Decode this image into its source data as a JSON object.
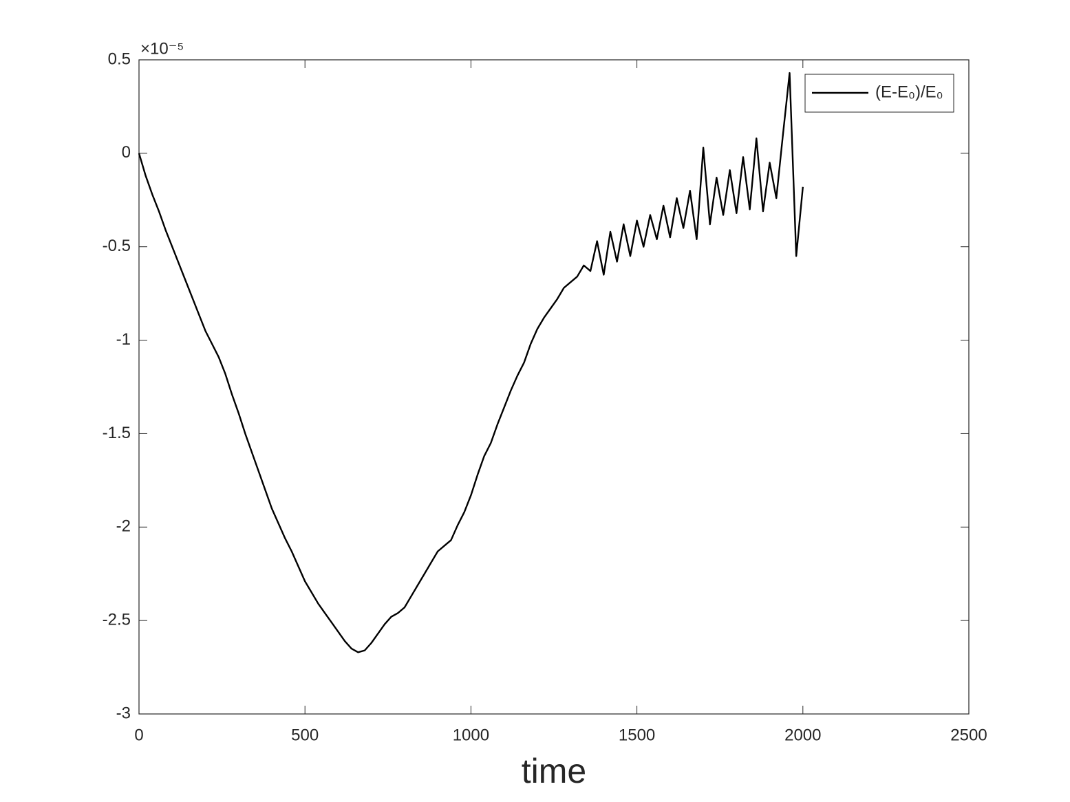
{
  "chart_data": {
    "type": "line",
    "xlabel": "time",
    "y_multiplier": "×10⁻⁵",
    "xlim": [
      0,
      2500
    ],
    "xticks": [
      0,
      500,
      1000,
      1500,
      2000,
      2500
    ],
    "ylim": [
      -3,
      0.5
    ],
    "yticks": [
      0.5,
      0,
      -0.5,
      -1,
      -1.5,
      -2,
      -2.5,
      -3
    ],
    "legend": "northeast",
    "x": [
      0,
      20,
      40,
      60,
      80,
      100,
      120,
      140,
      160,
      180,
      200,
      220,
      240,
      260,
      280,
      300,
      320,
      340,
      360,
      380,
      400,
      420,
      440,
      460,
      480,
      500,
      520,
      540,
      560,
      580,
      600,
      620,
      640,
      660,
      680,
      700,
      720,
      740,
      760,
      780,
      800,
      820,
      840,
      860,
      880,
      900,
      920,
      940,
      960,
      980,
      1000,
      1020,
      1040,
      1060,
      1080,
      1100,
      1120,
      1140,
      1160,
      1180,
      1200,
      1220,
      1240,
      1260,
      1280,
      1300,
      1320,
      1340,
      1360,
      1380,
      1400,
      1420,
      1440,
      1460,
      1480,
      1500,
      1520,
      1540,
      1560,
      1580,
      1600,
      1620,
      1640,
      1660,
      1680,
      1700,
      1720,
      1740,
      1760,
      1780,
      1800,
      1820,
      1840,
      1860,
      1880,
      1900,
      1920,
      1940,
      1960,
      1980,
      2000
    ],
    "series": [
      {
        "name": "(E-E₀)/E₀",
        "color": "#000000",
        "values": [
          0,
          -0.12,
          -0.22,
          -0.31,
          -0.41,
          -0.5,
          -0.59,
          -0.68,
          -0.77,
          -0.86,
          -0.95,
          -1.02,
          -1.09,
          -1.18,
          -1.29,
          -1.39,
          -1.5,
          -1.6,
          -1.7,
          -1.8,
          -1.9,
          -1.98,
          -2.06,
          -2.13,
          -2.21,
          -2.29,
          -2.35,
          -2.41,
          -2.46,
          -2.51,
          -2.56,
          -2.61,
          -2.65,
          -2.67,
          -2.66,
          -2.62,
          -2.57,
          -2.52,
          -2.48,
          -2.46,
          -2.43,
          -2.37,
          -2.31,
          -2.25,
          -2.19,
          -2.13,
          -2.1,
          -2.07,
          -1.99,
          -1.92,
          -1.83,
          -1.72,
          -1.62,
          -1.55,
          -1.45,
          -1.36,
          -1.27,
          -1.19,
          -1.12,
          -1.02,
          -0.94,
          -0.88,
          -0.83,
          -0.78,
          -0.72,
          -0.69,
          -0.66,
          -0.6,
          -0.63,
          -0.47,
          -0.65,
          -0.42,
          -0.58,
          -0.38,
          -0.55,
          -0.36,
          -0.5,
          -0.33,
          -0.46,
          -0.28,
          -0.45,
          -0.24,
          -0.4,
          -0.2,
          -0.46,
          0.03,
          -0.38,
          -0.13,
          -0.33,
          -0.09,
          -0.32,
          -0.02,
          -0.3,
          0.08,
          -0.31,
          -0.05,
          -0.24,
          0.1,
          0.43,
          -0.55,
          -0.18
        ]
      }
    ]
  }
}
